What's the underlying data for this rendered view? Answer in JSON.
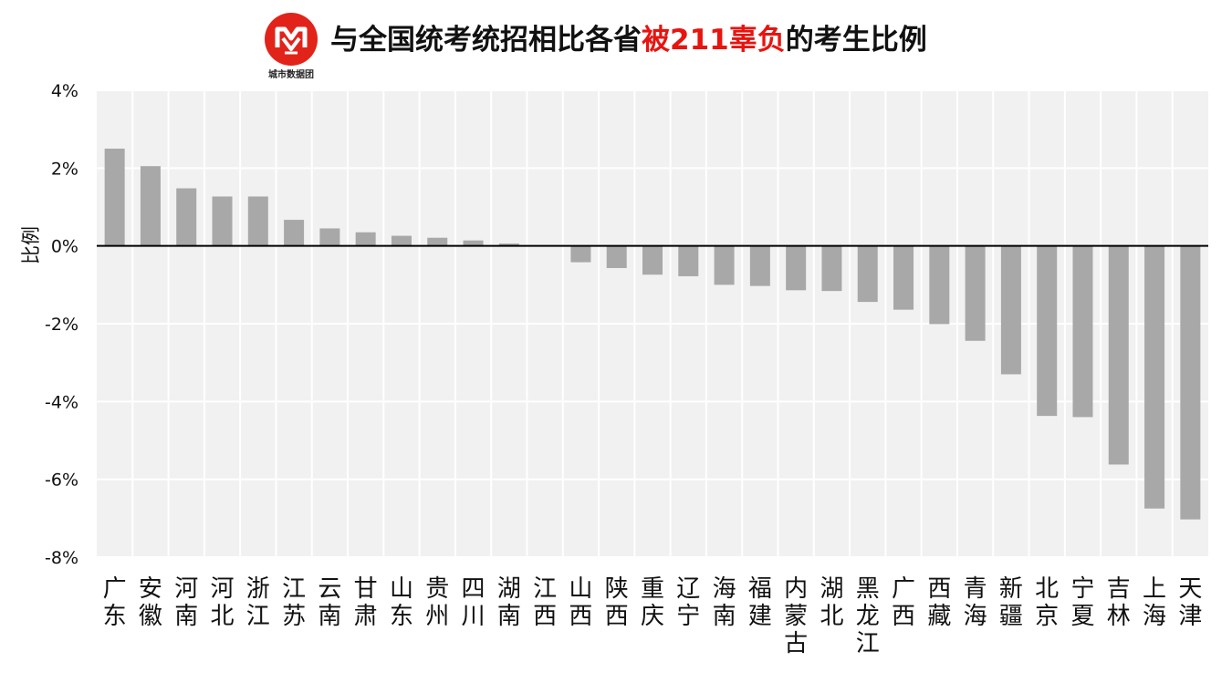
{
  "header": {
    "logo_caption": "城市数据团",
    "title_prefix": "与全国统考统招相比各省",
    "title_highlight": "被211辜负",
    "title_suffix": "的考生比例",
    "highlight_color": "#e8140f",
    "logo_color": "#e2231a"
  },
  "chart_data": {
    "type": "bar",
    "title": "与全国统考统招相比各省被211辜负的考生比例",
    "xlabel": "",
    "ylabel": "比例",
    "ylim": [
      -8,
      4
    ],
    "yticks": [
      4,
      2,
      0,
      -2,
      -4,
      -6,
      -8
    ],
    "ytick_labels": [
      "4%",
      "2%",
      "0%",
      "-2%",
      "-4%",
      "-6%",
      "-8%"
    ],
    "grid": true,
    "bar_color": "#a8a8a8",
    "plot_background": "#f1f1f1",
    "categories": [
      "广东",
      "安徽",
      "河南",
      "河北",
      "浙江",
      "江苏",
      "云南",
      "甘肃",
      "山东",
      "贵州",
      "四川",
      "湖南",
      "江西",
      "山西",
      "陕西",
      "重庆",
      "辽宁",
      "海南",
      "福建",
      "内蒙古",
      "湖北",
      "黑龙江",
      "广西",
      "西藏",
      "青海",
      "新疆",
      "北京",
      "宁夏",
      "吉林",
      "上海",
      "天津"
    ],
    "values": [
      2.5,
      2.05,
      1.48,
      1.27,
      1.27,
      0.67,
      0.45,
      0.35,
      0.26,
      0.21,
      0.14,
      0.06,
      0.0,
      -0.42,
      -0.57,
      -0.74,
      -0.78,
      -1.0,
      -1.03,
      -1.14,
      -1.16,
      -1.44,
      -1.64,
      -2.01,
      -2.44,
      -3.3,
      -4.37,
      -4.4,
      -5.62,
      -6.75,
      -7.03
    ]
  }
}
